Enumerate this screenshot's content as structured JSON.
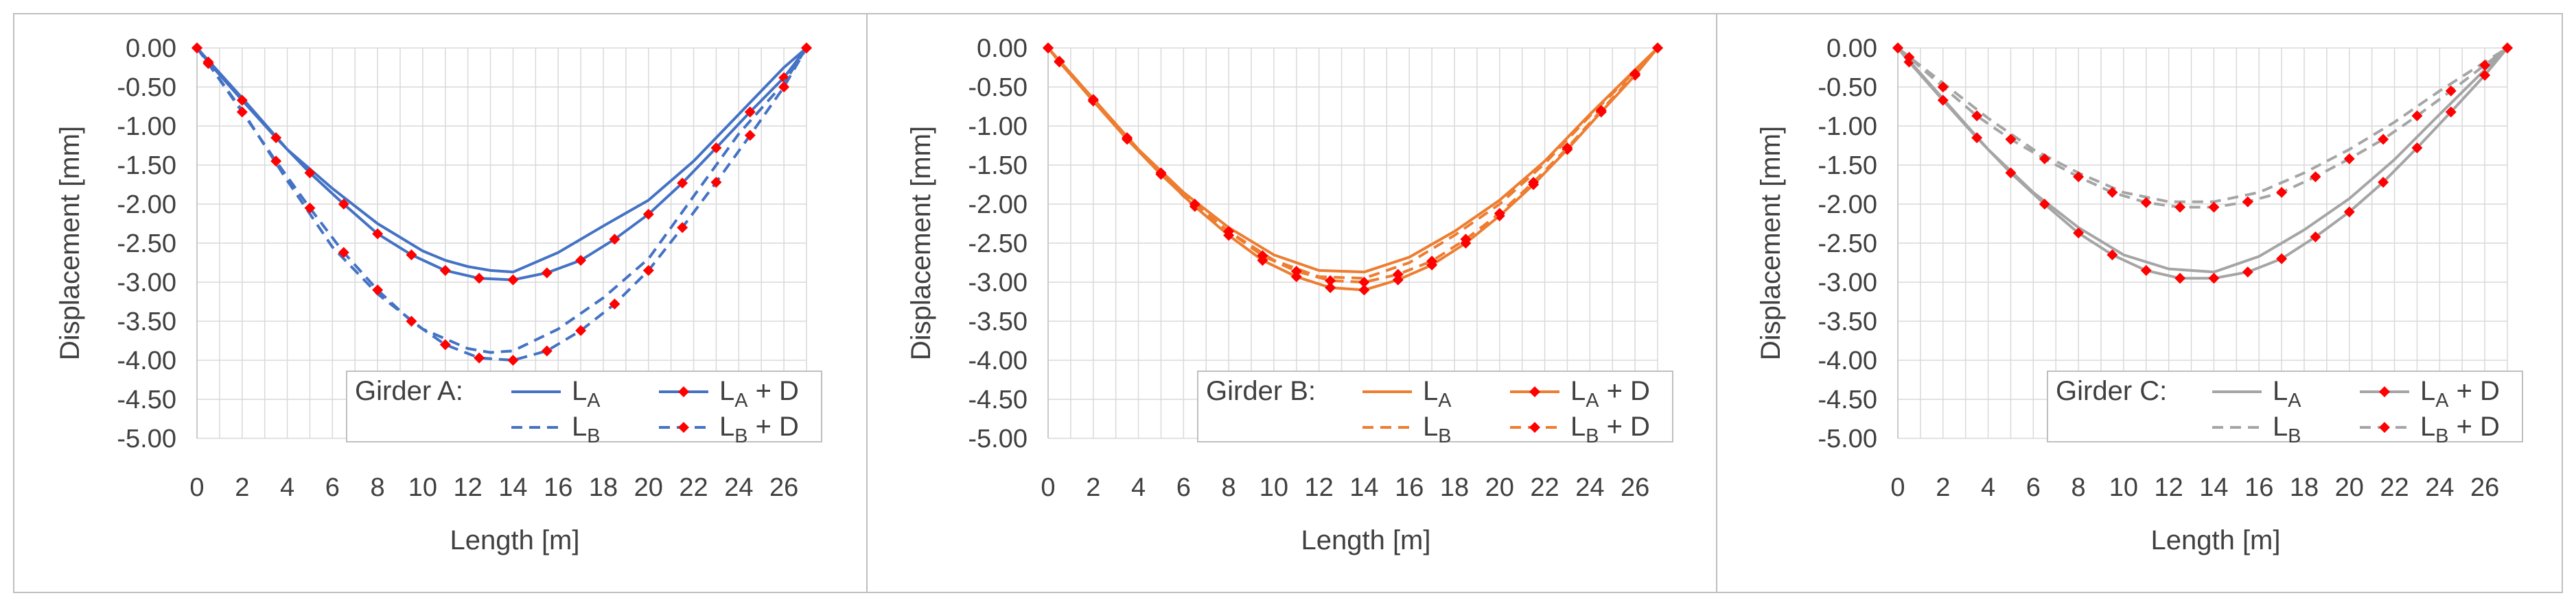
{
  "panel_titles": [
    "Girder A:",
    "Girder B:",
    "Girder C:"
  ],
  "colors": {
    "girder_a": "#4472C4",
    "girder_b": "#ED7D31",
    "girder_c": "#A5A5A5",
    "marker": "#FF0000",
    "grid": "#D9D9D9",
    "frame": "#BFBFBF"
  },
  "chart_data": [
    {
      "type": "line",
      "legend_title": "Girder A:",
      "xlabel": "Length [m]",
      "ylabel": "Displacement [mm]",
      "xlim": [
        0,
        27
      ],
      "ylim": [
        -5.0,
        0.0
      ],
      "xticks": [
        "0",
        "2",
        "4",
        "6",
        "8",
        "10",
        "12",
        "14",
        "16",
        "18",
        "20",
        "22",
        "24",
        "26"
      ],
      "yticks": [
        "0.00",
        "-0.50",
        "-1.00",
        "-1.50",
        "-2.00",
        "-2.50",
        "-3.00",
        "-3.50",
        "-4.00",
        "-4.50",
        "-5.00"
      ],
      "grid": true,
      "legend_position": "bottom-right",
      "series": [
        {
          "name": "LA",
          "sub": "A",
          "suffix": "",
          "style": "solid",
          "markers": false,
          "x": [
            0,
            2,
            4,
            6,
            8,
            10,
            11,
            12,
            13,
            14,
            16,
            18,
            20,
            22,
            24,
            26,
            27
          ],
          "y": [
            0,
            -0.64,
            -1.3,
            -1.8,
            -2.25,
            -2.6,
            -2.72,
            -2.8,
            -2.85,
            -2.87,
            -2.62,
            -2.28,
            -1.95,
            -1.45,
            -0.85,
            -0.25,
            0
          ]
        },
        {
          "name": "LA + D",
          "sub": "A",
          "suffix": " + D",
          "style": "solid",
          "markers": true,
          "x": [
            0,
            0.5,
            2,
            3.5,
            5,
            6.5,
            8,
            9.5,
            11,
            12.5,
            14,
            15.5,
            17,
            18.5,
            20,
            21.5,
            23,
            24.5,
            26,
            27
          ],
          "y": [
            0,
            -0.18,
            -0.67,
            -1.15,
            -1.6,
            -2.0,
            -2.38,
            -2.65,
            -2.85,
            -2.95,
            -2.97,
            -2.88,
            -2.72,
            -2.45,
            -2.13,
            -1.73,
            -1.28,
            -0.82,
            -0.38,
            0
          ]
        },
        {
          "name": "LB",
          "sub": "B",
          "suffix": "",
          "style": "dashed",
          "markers": false,
          "x": [
            0,
            2,
            4,
            6,
            8,
            10,
            12,
            13,
            14,
            16,
            18,
            20,
            22,
            24,
            26,
            27
          ],
          "y": [
            0,
            -0.8,
            -1.7,
            -2.55,
            -3.15,
            -3.6,
            -3.85,
            -3.9,
            -3.88,
            -3.6,
            -3.2,
            -2.7,
            -1.9,
            -1.1,
            -0.45,
            0
          ]
        },
        {
          "name": "LB + D",
          "sub": "B",
          "suffix": " + D",
          "style": "dashed",
          "markers": true,
          "x": [
            0,
            0.5,
            2,
            3.5,
            5,
            6.5,
            8,
            9.5,
            11,
            12.5,
            14,
            15.5,
            17,
            18.5,
            20,
            21.5,
            23,
            24.5,
            26,
            27
          ],
          "y": [
            0,
            -0.2,
            -0.82,
            -1.45,
            -2.05,
            -2.62,
            -3.1,
            -3.5,
            -3.8,
            -3.97,
            -4.0,
            -3.88,
            -3.62,
            -3.28,
            -2.85,
            -2.3,
            -1.72,
            -1.12,
            -0.5,
            0
          ]
        }
      ]
    },
    {
      "type": "line",
      "legend_title": "Girder B:",
      "xlabel": "Length [m]",
      "ylabel": "Displacement [mm]",
      "xlim": [
        0,
        27
      ],
      "ylim": [
        -5.0,
        0.0
      ],
      "xticks": [
        "0",
        "2",
        "4",
        "6",
        "8",
        "10",
        "12",
        "14",
        "16",
        "18",
        "20",
        "22",
        "24",
        "26"
      ],
      "yticks": [
        "0.00",
        "-0.50",
        "-1.00",
        "-1.50",
        "-2.00",
        "-2.50",
        "-3.00",
        "-3.50",
        "-4.00",
        "-4.50",
        "-5.00"
      ],
      "grid": true,
      "legend_position": "bottom-right",
      "series": [
        {
          "name": "LA",
          "sub": "A",
          "suffix": "",
          "style": "solid",
          "markers": false,
          "x": [
            0,
            2,
            4,
            6,
            8,
            10,
            12,
            14,
            16,
            18,
            20,
            22,
            24,
            26,
            27
          ],
          "y": [
            0,
            -0.65,
            -1.3,
            -1.85,
            -2.3,
            -2.65,
            -2.85,
            -2.87,
            -2.68,
            -2.35,
            -1.95,
            -1.45,
            -0.85,
            -0.28,
            0
          ]
        },
        {
          "name": "LA + D",
          "sub": "A",
          "suffix": " + D",
          "style": "solid",
          "markers": true,
          "x": [
            0,
            0.5,
            2,
            3.5,
            5,
            6.5,
            8,
            9.5,
            11,
            12.5,
            14,
            15.5,
            17,
            18.5,
            20,
            21.5,
            23,
            24.5,
            26,
            27
          ],
          "y": [
            0,
            -0.18,
            -0.68,
            -1.17,
            -1.62,
            -2.03,
            -2.4,
            -2.72,
            -2.93,
            -3.07,
            -3.1,
            -2.97,
            -2.78,
            -2.5,
            -2.15,
            -1.75,
            -1.3,
            -0.82,
            -0.35,
            0
          ]
        },
        {
          "name": "LB",
          "sub": "B",
          "suffix": "",
          "style": "dashed",
          "markers": false,
          "x": [
            0,
            2,
            4,
            6,
            8,
            10,
            12,
            14,
            16,
            18,
            20,
            22,
            24,
            26,
            27
          ],
          "y": [
            0,
            -0.65,
            -1.3,
            -1.9,
            -2.35,
            -2.72,
            -2.93,
            -2.95,
            -2.75,
            -2.4,
            -2.0,
            -1.48,
            -0.87,
            -0.3,
            0
          ]
        },
        {
          "name": "LB + D",
          "sub": "B",
          "suffix": " + D",
          "style": "dashed",
          "markers": true,
          "x": [
            0,
            0.5,
            2,
            3.5,
            5,
            6.5,
            8,
            9.5,
            11,
            12.5,
            14,
            15.5,
            17,
            18.5,
            20,
            21.5,
            23,
            24.5,
            26,
            27
          ],
          "y": [
            0,
            -0.17,
            -0.66,
            -1.15,
            -1.6,
            -2.0,
            -2.35,
            -2.66,
            -2.86,
            -2.98,
            -3.0,
            -2.9,
            -2.73,
            -2.45,
            -2.12,
            -1.72,
            -1.28,
            -0.8,
            -0.33,
            0
          ]
        }
      ]
    },
    {
      "type": "line",
      "legend_title": "Girder C:",
      "xlabel": "Length [m]",
      "ylabel": "Displacement [mm]",
      "xlim": [
        0,
        27
      ],
      "ylim": [
        -5.0,
        0.0
      ],
      "xticks": [
        "0",
        "2",
        "4",
        "6",
        "8",
        "10",
        "12",
        "14",
        "16",
        "18",
        "20",
        "22",
        "24",
        "26"
      ],
      "yticks": [
        "0.00",
        "-0.50",
        "-1.00",
        "-1.50",
        "-2.00",
        "-2.50",
        "-3.00",
        "-3.50",
        "-4.00",
        "-4.50",
        "-5.00"
      ],
      "grid": true,
      "legend_position": "bottom-right",
      "series": [
        {
          "name": "LA",
          "sub": "A",
          "suffix": "",
          "style": "solid",
          "markers": false,
          "x": [
            0,
            2,
            4,
            6,
            8,
            10,
            12,
            14,
            16,
            18,
            20,
            22,
            24,
            26,
            27
          ],
          "y": [
            0,
            -0.65,
            -1.3,
            -1.85,
            -2.3,
            -2.65,
            -2.83,
            -2.87,
            -2.67,
            -2.33,
            -1.93,
            -1.43,
            -0.85,
            -0.28,
            0
          ]
        },
        {
          "name": "LA + D",
          "sub": "A",
          "suffix": " + D",
          "style": "solid",
          "markers": true,
          "x": [
            0,
            0.5,
            2,
            3.5,
            5,
            6.5,
            8,
            9.5,
            11,
            12.5,
            14,
            15.5,
            17,
            18.5,
            20,
            21.5,
            23,
            24.5,
            26,
            27
          ],
          "y": [
            0,
            -0.18,
            -0.67,
            -1.15,
            -1.6,
            -2.0,
            -2.37,
            -2.65,
            -2.85,
            -2.95,
            -2.95,
            -2.87,
            -2.7,
            -2.42,
            -2.1,
            -1.72,
            -1.28,
            -0.82,
            -0.35,
            0
          ]
        },
        {
          "name": "LB",
          "sub": "B",
          "suffix": "",
          "style": "dashed",
          "markers": false,
          "x": [
            0,
            2,
            4,
            6,
            8,
            10,
            12,
            14,
            16,
            18,
            20,
            22,
            24,
            26,
            27
          ],
          "y": [
            0,
            -0.45,
            -0.9,
            -1.3,
            -1.6,
            -1.85,
            -1.97,
            -1.97,
            -1.85,
            -1.6,
            -1.3,
            -0.95,
            -0.55,
            -0.18,
            0
          ]
        },
        {
          "name": "LB + D",
          "sub": "B",
          "suffix": " + D",
          "style": "dashed",
          "markers": true,
          "x": [
            0,
            0.5,
            2,
            3.5,
            5,
            6.5,
            8,
            9.5,
            11,
            12.5,
            14,
            15.5,
            17,
            18.5,
            20,
            21.5,
            23,
            24.5,
            26,
            27
          ],
          "y": [
            0,
            -0.12,
            -0.5,
            -0.87,
            -1.17,
            -1.42,
            -1.65,
            -1.85,
            -1.98,
            -2.04,
            -2.04,
            -1.97,
            -1.85,
            -1.65,
            -1.42,
            -1.17,
            -0.87,
            -0.55,
            -0.22,
            0
          ]
        }
      ]
    }
  ]
}
